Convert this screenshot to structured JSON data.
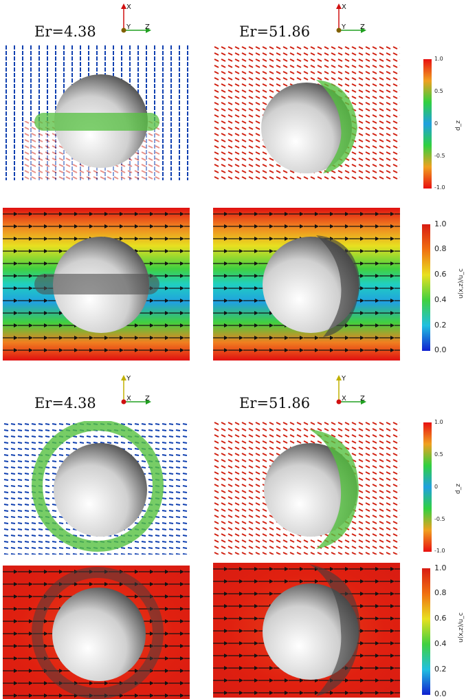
{
  "rows": [
    {
      "axes": {
        "up": "X",
        "side": "Y",
        "right": "Z"
      },
      "left_label": "Er=4.38",
      "right_label": "Er=51.86"
    },
    {
      "axes": {
        "up": "Y",
        "side": "X",
        "right": "Z"
      },
      "left_label": "Er=4.38",
      "right_label": "Er=51.86"
    }
  ],
  "colorbars": {
    "director": {
      "title": "d_z",
      "ticks": [
        "1.0",
        "0.5",
        "0",
        "-0.5",
        "-1.0"
      ],
      "range": [
        -1.0,
        1.0
      ]
    },
    "velocity": {
      "title": "u(x,z)/u_c",
      "ticks": [
        "1.0",
        "0.8",
        "0.6",
        "0.4",
        "0.2",
        "0.0"
      ],
      "range": [
        0.0,
        1.0
      ]
    }
  },
  "colors": {
    "high": "#e8201a",
    "mid": "#22cc44",
    "low": "#1030d0",
    "sphere": "#b8b8b8",
    "defect": "#55c040"
  }
}
